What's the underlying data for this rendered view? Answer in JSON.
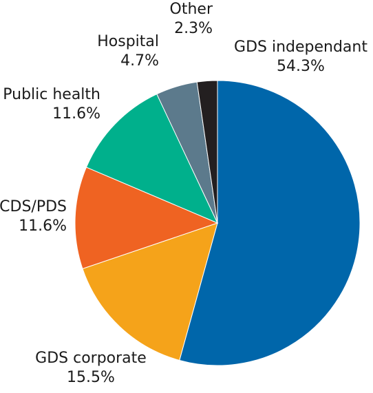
{
  "chart_data": {
    "type": "pie",
    "title": "",
    "slices": [
      {
        "label": "GDS independant",
        "pct_label": "54.3%",
        "value": 54.3,
        "color": "#0066aa"
      },
      {
        "label": "GDS corporate",
        "pct_label": "15.5%",
        "value": 15.5,
        "color": "#f5a31a"
      },
      {
        "label": "CDS/PDS",
        "pct_label": "11.6%",
        "value": 11.6,
        "color": "#ef6322"
      },
      {
        "label": "Public health",
        "pct_label": "11.6%",
        "value": 11.6,
        "color": "#00b08c"
      },
      {
        "label": "Hospital",
        "pct_label": "4.7%",
        "value": 4.7,
        "color": "#5c7a8c"
      },
      {
        "label": "Other",
        "pct_label": "2.3%",
        "value": 2.3,
        "color": "#231f20"
      }
    ],
    "start": "12 o'clock",
    "direction": "clockwise",
    "legend": "none"
  }
}
